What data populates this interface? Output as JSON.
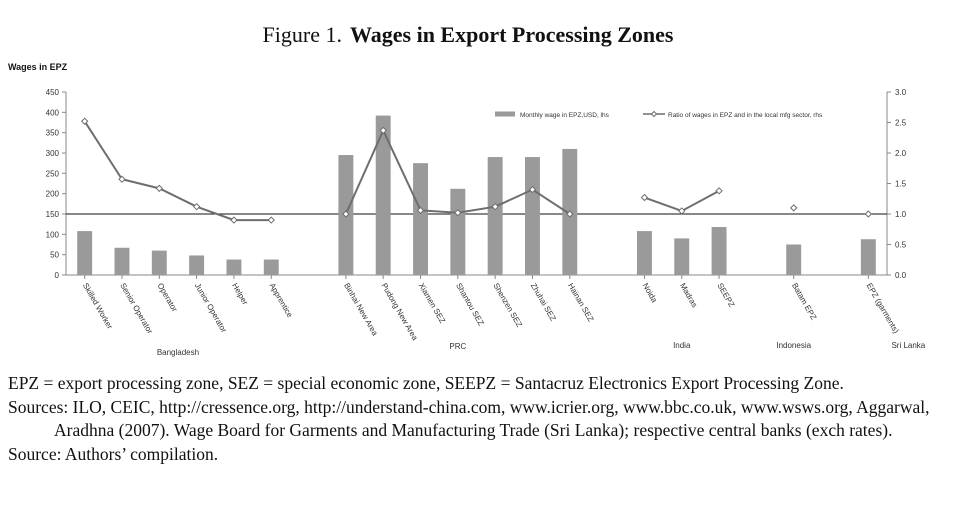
{
  "chart_data": {
    "type": "bar",
    "title_prefix": "Figure 1.",
    "title": "Wages in Export Processing Zones",
    "y_label": "Wages in EPZ",
    "categories": [
      "Skilled Worker",
      "Senior Operator",
      "Operator",
      "Junior Operator",
      "Helper",
      "Apprentice",
      null,
      "Binhai New Area",
      "Pudong New Area",
      "Xiamen SEZ",
      "Shantou SEZ",
      "Shenzen SEZ",
      "Zhuhai SEZ",
      "Hainan SEZ",
      null,
      "Noida",
      "Madras",
      "SEEPZ",
      null,
      "Batam EPZ",
      null,
      "EPZ (garments)"
    ],
    "groups": [
      "Bangladesh",
      "PRC",
      "India",
      "Indonesia",
      "Sri Lanka"
    ],
    "series": [
      {
        "name": "Monthly wage in EPZ,USD, lhs",
        "type": "bar",
        "color": "#9a9a9a",
        "values": [
          108,
          67,
          60,
          48,
          38,
          38,
          null,
          295,
          392,
          275,
          212,
          290,
          290,
          310,
          null,
          108,
          90,
          118,
          null,
          75,
          null,
          88
        ]
      },
      {
        "name": "Ratio of wages in EPZ and in the local mfg sector, rhs",
        "type": "line",
        "axis": "y2",
        "color": "#6e6e6e",
        "values": [
          2.52,
          1.57,
          1.42,
          1.12,
          0.9,
          0.9,
          null,
          1.0,
          2.37,
          1.06,
          1.02,
          1.12,
          1.4,
          1.0,
          null,
          1.27,
          1.05,
          1.38,
          null,
          1.1,
          null,
          1.0
        ]
      }
    ],
    "reference_line": 1,
    "ylim": [
      0,
      450
    ],
    "yticks": [
      0,
      50,
      100,
      150,
      200,
      250,
      300,
      350,
      400,
      450
    ],
    "y2lim": [
      0,
      3
    ],
    "y2ticks": [
      {
        "value": 0,
        "label": "0.0"
      },
      {
        "value": 0.5,
        "label": "0.5"
      },
      {
        "value": 1,
        "label": "1.0"
      },
      {
        "value": 1.5,
        "label": "1.5"
      },
      {
        "value": 2,
        "label": "2.0"
      },
      {
        "value": 2.5,
        "label": "2.5"
      },
      {
        "value": 3,
        "label": "3.0"
      }
    ],
    "notes": [
      "EPZ = export processing zone, SEZ = special economic zone, SEEPZ = Santacruz Electronics Export Processing Zone.",
      "Sources: ILO, CEIC, http://cressence.org, http://understand-china.com, www.icrier.org, www.bbc.co.uk, www.wsws.org, Aggarwal, Aradhna (2007). Wage Board for Garments and Manufacturing Trade (Sri Lanka); respective central banks (exch rates).",
      "Source: Authors’ compilation."
    ]
  }
}
